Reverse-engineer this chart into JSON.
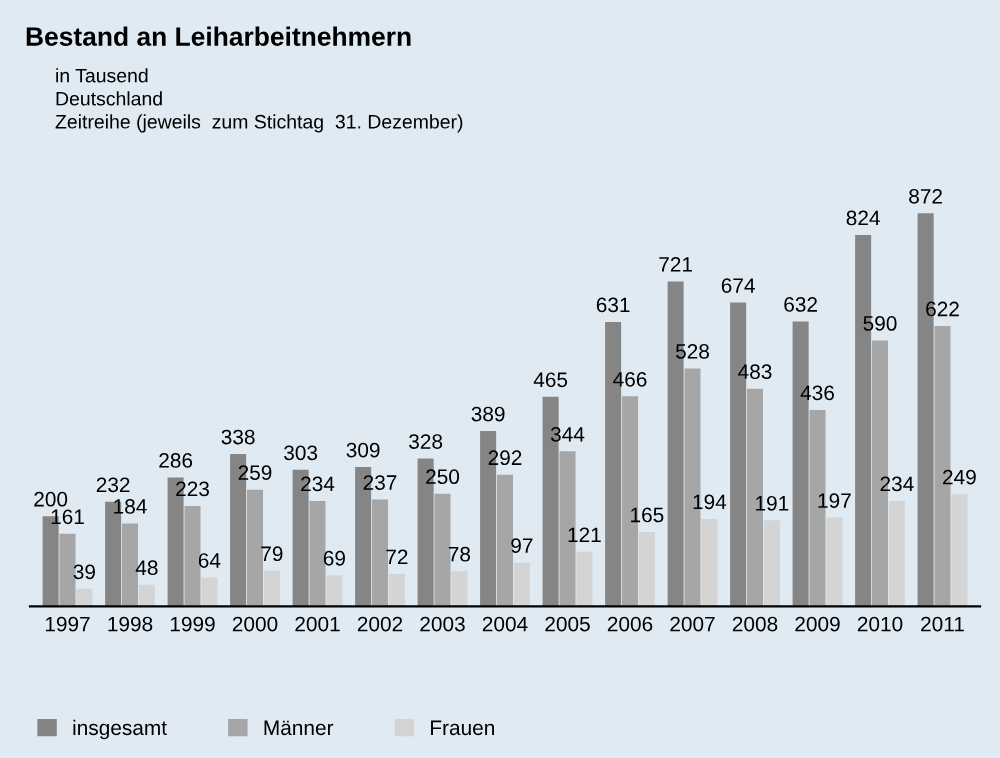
{
  "chart_data": {
    "type": "bar",
    "title": "Bestand an Leiharbeitnehmern",
    "subtitle": "in Tausend\nDeutschland\nZeitreihe (jeweils  zum Stichtag  31. Dezember)",
    "categories": [
      "1997",
      "1998",
      "1999",
      "2000",
      "2001",
      "2002",
      "2003",
      "2004",
      "2005",
      "2006",
      "2007",
      "2008",
      "2009",
      "2010",
      "2011"
    ],
    "series": [
      {
        "name": "insgesamt",
        "color": "#858585",
        "values": [
          200,
          232,
          286,
          338,
          303,
          309,
          328,
          389,
          465,
          631,
          721,
          674,
          632,
          824,
          872
        ]
      },
      {
        "name": "Männer",
        "color": "#a6a6a6",
        "values": [
          161,
          184,
          223,
          259,
          234,
          237,
          250,
          292,
          344,
          466,
          528,
          483,
          436,
          590,
          622
        ]
      },
      {
        "name": "Frauen",
        "color": "#d4d4d4",
        "values": [
          39,
          48,
          64,
          79,
          69,
          72,
          78,
          97,
          121,
          165,
          194,
          191,
          197,
          234,
          249
        ]
      }
    ],
    "data_labels": true,
    "legend": "bottom left",
    "grid": false
  }
}
